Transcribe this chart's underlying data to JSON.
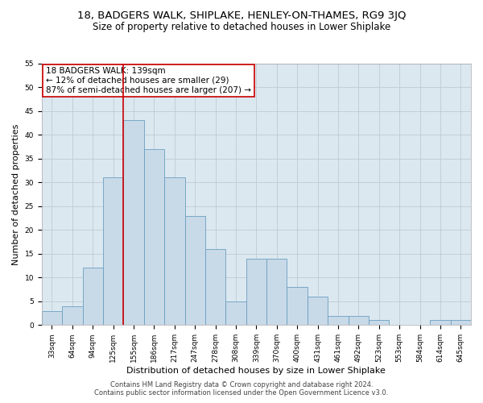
{
  "title": "18, BADGERS WALK, SHIPLAKE, HENLEY-ON-THAMES, RG9 3JQ",
  "subtitle": "Size of property relative to detached houses in Lower Shiplake",
  "xlabel": "Distribution of detached houses by size in Lower Shiplake",
  "ylabel": "Number of detached properties",
  "categories": [
    "33sqm",
    "64sqm",
    "94sqm",
    "125sqm",
    "155sqm",
    "186sqm",
    "217sqm",
    "247sqm",
    "278sqm",
    "308sqm",
    "339sqm",
    "370sqm",
    "400sqm",
    "431sqm",
    "461sqm",
    "492sqm",
    "523sqm",
    "553sqm",
    "584sqm",
    "614sqm",
    "645sqm"
  ],
  "values": [
    3,
    4,
    12,
    31,
    43,
    37,
    31,
    23,
    16,
    5,
    14,
    14,
    8,
    6,
    2,
    2,
    1,
    0,
    0,
    1,
    1
  ],
  "bar_color": "#c8d9e8",
  "bar_edge_color": "#6a9fc0",
  "vline_x": 3.5,
  "vline_color": "#cc0000",
  "annotation_text": "18 BADGERS WALK: 139sqm\n← 12% of detached houses are smaller (29)\n87% of semi-detached houses are larger (207) →",
  "annotation_box_color": "#ffffff",
  "annotation_box_edge": "#cc0000",
  "ylim": [
    0,
    55
  ],
  "yticks": [
    0,
    5,
    10,
    15,
    20,
    25,
    30,
    35,
    40,
    45,
    50,
    55
  ],
  "grid_color": "#c0c9d4",
  "plot_bg_color": "#dce8f0",
  "footer_line1": "Contains HM Land Registry data © Crown copyright and database right 2024.",
  "footer_line2": "Contains public sector information licensed under the Open Government Licence v3.0.",
  "title_fontsize": 9.5,
  "subtitle_fontsize": 8.5,
  "axis_label_fontsize": 8,
  "tick_fontsize": 6.5,
  "annotation_fontsize": 7.5,
  "footer_fontsize": 6
}
